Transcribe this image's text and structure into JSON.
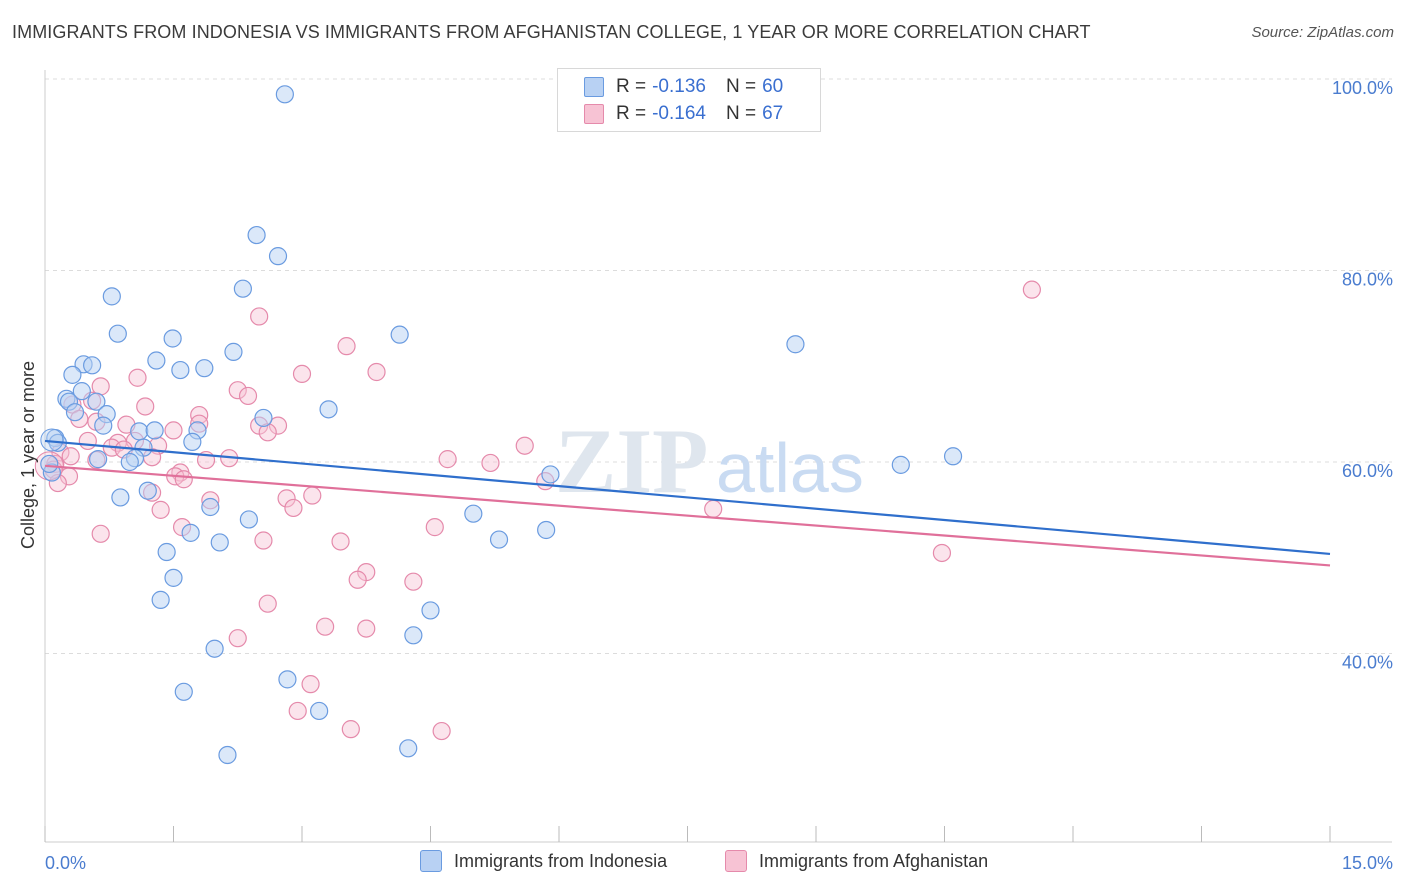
{
  "title": "IMMIGRANTS FROM INDONESIA VS IMMIGRANTS FROM AFGHANISTAN COLLEGE, 1 YEAR OR MORE CORRELATION CHART",
  "source": "Source: ZipAtlas.com",
  "watermark": {
    "zip": "ZIP",
    "atlas": "atlas"
  },
  "legend": {
    "rows": [
      {
        "r_label": "R =",
        "r_value": "-0.136",
        "n_label": "N =",
        "n_value": "60"
      },
      {
        "r_label": "R =",
        "r_value": "-0.164",
        "n_label": "N =",
        "n_value": "67"
      }
    ]
  },
  "bottom_legend": {
    "series1": "Immigrants from Indonesia",
    "series2": "Immigrants from Afghanistan"
  },
  "colors": {
    "series1_fill": "#b8d1f3",
    "series1_stroke": "#6a9be0",
    "series1_line": "#2f6fcc",
    "series2_fill": "#f7c3d4",
    "series2_stroke": "#e58aab",
    "series2_line": "#e0709a",
    "grid": "#dcdcdc",
    "tick_label": "#4a7ccf"
  },
  "chart_data": {
    "type": "scatter",
    "title": "IMMIGRANTS FROM INDONESIA VS IMMIGRANTS FROM AFGHANISTAN COLLEGE, 1 YEAR OR MORE CORRELATION CHART",
    "xlabel": "",
    "ylabel": "College, 1 year or more",
    "xlim": [
      0,
      15
    ],
    "ylim": [
      20,
      102
    ],
    "x_tick_labels": [
      {
        "value": 0,
        "label": "0.0%"
      },
      {
        "value": 15,
        "label": "15.0%"
      }
    ],
    "y_tick_labels": [
      {
        "value": 40,
        "label": "40.0%"
      },
      {
        "value": 60,
        "label": "60.0%"
      },
      {
        "value": 80,
        "label": "80.0%"
      },
      {
        "value": 100,
        "label": "100.0%"
      }
    ],
    "series": [
      {
        "name": "Immigrants from Indonesia",
        "r": -0.136,
        "n": 60,
        "trend": {
          "x0": 0,
          "y0": 62.2,
          "x1": 15,
          "y1": 50.4
        },
        "points": [
          [
            2.8,
            98.4
          ],
          [
            2.47,
            83.7
          ],
          [
            2.72,
            81.5
          ],
          [
            0.78,
            77.3
          ],
          [
            2.31,
            78.1
          ],
          [
            0.85,
            73.4
          ],
          [
            1.49,
            72.9
          ],
          [
            4.14,
            73.3
          ],
          [
            2.2,
            71.5
          ],
          [
            1.3,
            70.6
          ],
          [
            0.45,
            70.2
          ],
          [
            0.55,
            70.1
          ],
          [
            1.58,
            69.6
          ],
          [
            1.86,
            69.8
          ],
          [
            0.32,
            69.1
          ],
          [
            0.43,
            67.4
          ],
          [
            0.25,
            66.6
          ],
          [
            0.28,
            66.3
          ],
          [
            0.6,
            66.3
          ],
          [
            0.35,
            65.2
          ],
          [
            0.72,
            65.0
          ],
          [
            3.31,
            65.5
          ],
          [
            2.55,
            64.6
          ],
          [
            0.68,
            63.8
          ],
          [
            1.1,
            63.2
          ],
          [
            1.28,
            63.3
          ],
          [
            1.78,
            63.3
          ],
          [
            0.12,
            62.5
          ],
          [
            0.15,
            62.0
          ],
          [
            1.15,
            61.5
          ],
          [
            1.72,
            62.1
          ],
          [
            0.62,
            60.3
          ],
          [
            1.05,
            60.4
          ],
          [
            0.99,
            60.0
          ],
          [
            5.9,
            58.7
          ],
          [
            1.2,
            57.0
          ],
          [
            0.88,
            56.3
          ],
          [
            1.93,
            55.3
          ],
          [
            2.38,
            54.0
          ],
          [
            5.0,
            54.6
          ],
          [
            1.7,
            52.6
          ],
          [
            5.85,
            52.9
          ],
          [
            2.04,
            51.6
          ],
          [
            5.3,
            51.9
          ],
          [
            1.42,
            50.6
          ],
          [
            1.5,
            47.9
          ],
          [
            1.35,
            45.6
          ],
          [
            4.5,
            44.5
          ],
          [
            4.3,
            41.9
          ],
          [
            1.98,
            40.5
          ],
          [
            8.76,
            72.3
          ],
          [
            10.6,
            60.6
          ],
          [
            9.99,
            59.7
          ],
          [
            0.08,
            58.9
          ],
          [
            1.62,
            36.0
          ],
          [
            2.83,
            37.3
          ],
          [
            3.2,
            34.0
          ],
          [
            2.13,
            29.4
          ],
          [
            4.24,
            30.1
          ],
          [
            0.05,
            59.8
          ]
        ]
      },
      {
        "name": "Immigrants from Afghanistan",
        "r": -0.164,
        "n": 67,
        "trend": {
          "x0": 0,
          "y0": 59.6,
          "x1": 15,
          "y1": 49.2
        },
        "points": [
          [
            11.52,
            78.0
          ],
          [
            2.5,
            75.2
          ],
          [
            3.52,
            72.1
          ],
          [
            3.87,
            69.4
          ],
          [
            3.0,
            69.2
          ],
          [
            1.08,
            68.8
          ],
          [
            0.65,
            67.9
          ],
          [
            2.25,
            67.5
          ],
          [
            2.37,
            66.9
          ],
          [
            0.55,
            66.4
          ],
          [
            1.17,
            65.8
          ],
          [
            0.32,
            66.0
          ],
          [
            1.8,
            64.9
          ],
          [
            1.8,
            64.0
          ],
          [
            2.5,
            63.8
          ],
          [
            2.72,
            63.8
          ],
          [
            2.6,
            63.1
          ],
          [
            1.5,
            63.3
          ],
          [
            0.4,
            64.5
          ],
          [
            0.6,
            64.2
          ],
          [
            0.95,
            63.9
          ],
          [
            0.5,
            62.2
          ],
          [
            1.05,
            62.2
          ],
          [
            0.85,
            62.0
          ],
          [
            1.32,
            61.7
          ],
          [
            0.78,
            61.5
          ],
          [
            0.92,
            61.3
          ],
          [
            0.18,
            61.0
          ],
          [
            5.6,
            61.7
          ],
          [
            0.3,
            60.6
          ],
          [
            0.6,
            60.2
          ],
          [
            1.25,
            60.5
          ],
          [
            2.15,
            60.4
          ],
          [
            1.88,
            60.2
          ],
          [
            4.7,
            60.3
          ],
          [
            5.2,
            59.9
          ],
          [
            0.12,
            59.8
          ],
          [
            0.1,
            59.2
          ],
          [
            1.58,
            58.9
          ],
          [
            1.52,
            58.5
          ],
          [
            0.28,
            58.5
          ],
          [
            1.62,
            58.2
          ],
          [
            5.84,
            58.0
          ],
          [
            0.15,
            57.8
          ],
          [
            1.25,
            56.8
          ],
          [
            3.12,
            56.5
          ],
          [
            2.82,
            56.2
          ],
          [
            1.93,
            56.0
          ],
          [
            2.9,
            55.2
          ],
          [
            1.35,
            55.0
          ],
          [
            7.8,
            55.1
          ],
          [
            1.6,
            53.2
          ],
          [
            4.55,
            53.2
          ],
          [
            0.65,
            52.5
          ],
          [
            2.55,
            51.8
          ],
          [
            3.45,
            51.7
          ],
          [
            10.47,
            50.5
          ],
          [
            3.75,
            48.5
          ],
          [
            3.65,
            47.7
          ],
          [
            4.3,
            47.5
          ],
          [
            2.6,
            45.2
          ],
          [
            3.27,
            42.8
          ],
          [
            3.75,
            42.6
          ],
          [
            2.25,
            41.6
          ],
          [
            3.1,
            36.8
          ],
          [
            2.95,
            34.0
          ],
          [
            3.57,
            32.1
          ]
        ]
      }
    ],
    "extra_points_series2": [
      [
        4.63,
        31.9
      ]
    ]
  }
}
